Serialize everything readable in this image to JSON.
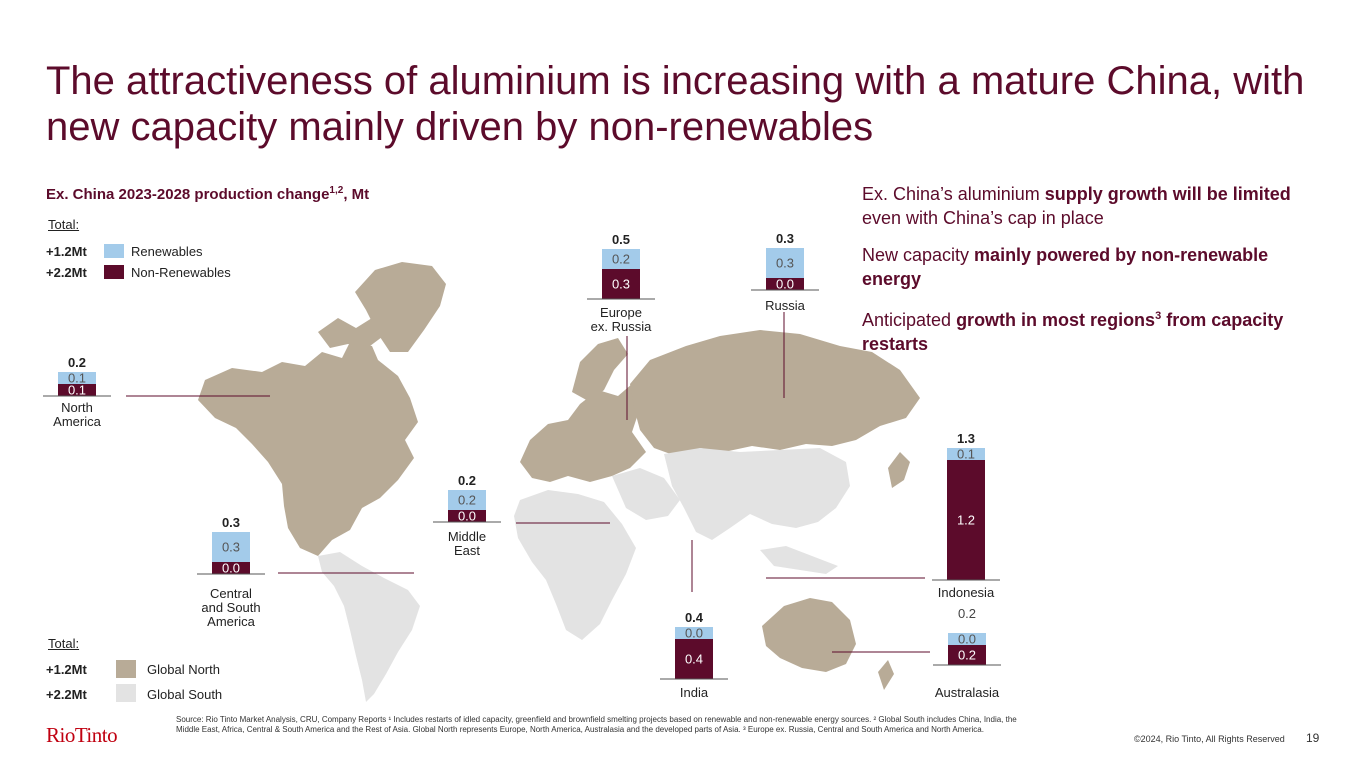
{
  "title": "The attractiveness of aluminium is increasing with a mature China, with new capacity mainly driven by non-renewables",
  "subtitle": {
    "text": "Ex. China 2023-2028 production change",
    "sup": "1,2",
    "unit": ", Mt"
  },
  "legend_top": {
    "total_label": "Total:",
    "items": [
      {
        "total": "+1.2Mt",
        "label": "Renewables",
        "color": "#a3cbea"
      },
      {
        "total": "+2.2Mt",
        "label": "Non-Renewables",
        "color": "#5c0b2b"
      }
    ]
  },
  "legend_bottom": {
    "total_label": "Total:",
    "items": [
      {
        "total": "+1.2Mt",
        "label": "Global North",
        "color": "#b8ab97"
      },
      {
        "total": "+2.2Mt",
        "label": "Global South",
        "color": "#e3e3e3"
      }
    ]
  },
  "bullets": [
    {
      "pre": "Ex. China’s aluminium ",
      "bold": "supply growth will be limited",
      "sup": "",
      "bold2": "",
      "post": " even with China’s cap in place"
    },
    {
      "pre": "New capacity ",
      "bold": "mainly powered by non-renewable energy",
      "sup": "",
      "bold2": "",
      "post": ""
    },
    {
      "pre": "Anticipated ",
      "bold": "growth in most regions",
      "sup": "3",
      "bold2": " from capacity restarts",
      "post": ""
    }
  ],
  "chart_data": {
    "type": "bar",
    "stacked": true,
    "unit": "Mt",
    "series": [
      {
        "name": "Non-Renewables",
        "color": "#5c0b2b"
      },
      {
        "name": "Renewables",
        "color": "#a3cbea"
      }
    ],
    "regions": [
      {
        "name": "North America",
        "total": "0.2",
        "non_renewables": 0.1,
        "renewables": 0.1,
        "nr_label": "0.1",
        "r_label": "0.1"
      },
      {
        "name": "Central and South America",
        "total": "0.3",
        "non_renewables": 0.0,
        "renewables": 0.3,
        "nr_label": "0.0",
        "r_label": "0.3"
      },
      {
        "name": "Middle East",
        "total": "0.2",
        "non_renewables": 0.0,
        "renewables": 0.2,
        "nr_label": "0.0",
        "r_label": "0.2"
      },
      {
        "name": "Europe ex. Russia",
        "total": "0.5",
        "non_renewables": 0.3,
        "renewables": 0.2,
        "nr_label": "0.3",
        "r_label": "0.2"
      },
      {
        "name": "Russia",
        "total": "0.3",
        "non_renewables": 0.0,
        "renewables": 0.3,
        "nr_label": "0.0",
        "r_label": "0.3"
      },
      {
        "name": "India",
        "total": "0.4",
        "non_renewables": 0.4,
        "renewables": 0.0,
        "nr_label": "0.4",
        "r_label": "0.0"
      },
      {
        "name": "Indonesia",
        "total": "1.3",
        "non_renewables": 1.2,
        "renewables": 0.1,
        "nr_label": "1.2",
        "r_label": "0.1"
      },
      {
        "name": "Australasia",
        "total": "0.2",
        "non_renewables": 0.2,
        "renewables": 0.0,
        "nr_label": "0.2",
        "r_label": "0.0"
      }
    ]
  },
  "footnote": "Source: Rio Tinto Market Analysis, CRU, Company Reports ¹ Includes restarts of idled capacity, greenfield and brownfield smelting projects based on renewable and non-renewable energy sources. ² Global South includes China, India, the Middle East, Africa, Central & South America and the Rest of Asia. Global North represents Europe, North America, Australasia and the developed parts of Asia. ³ Europe ex. Russia, Central and South America and North America.",
  "logo": "RioTinto",
  "copyright": "©2024, Rio Tinto, All Rights Reserved",
  "page_number": "19"
}
